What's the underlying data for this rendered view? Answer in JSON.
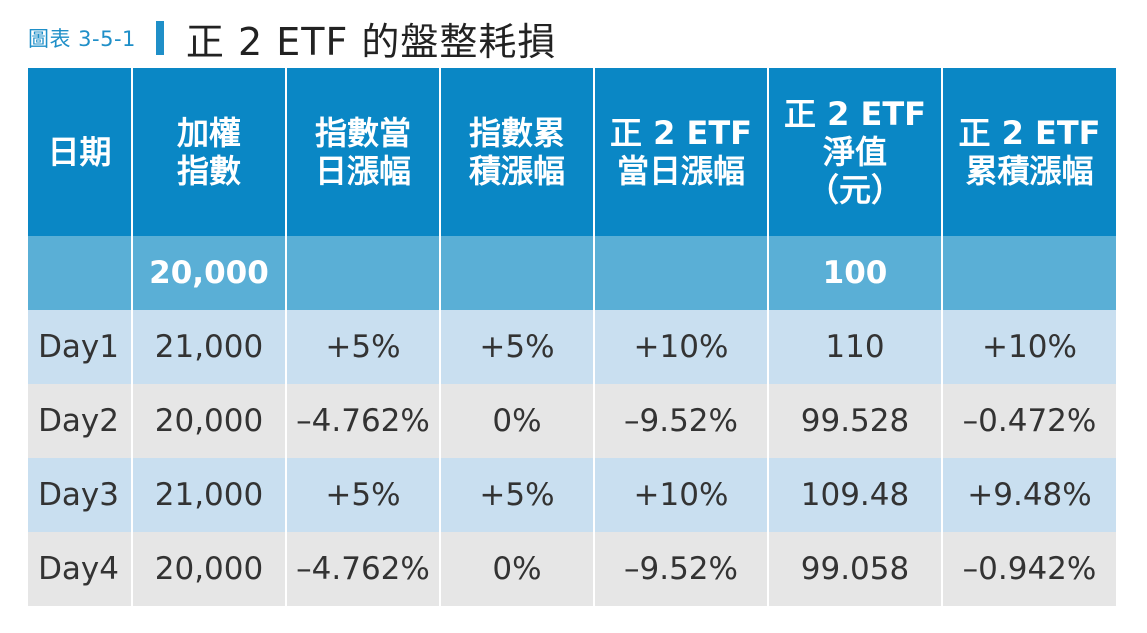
{
  "title": {
    "figure_label": "圖表 3-5-1",
    "text": "正 2 ETF 的盤整耗損"
  },
  "headers": [
    [
      "日期"
    ],
    [
      "加權",
      "指數"
    ],
    [
      "指數當",
      "日漲幅"
    ],
    [
      "指數累",
      "積漲幅"
    ],
    [
      "正 2 ETF",
      "當日漲幅"
    ],
    [
      "正 2 ETF",
      "淨值",
      "（元）"
    ],
    [
      "正 2 ETF",
      "累積漲幅"
    ]
  ],
  "base_row": [
    "",
    "20,000",
    "",
    "",
    "",
    "100",
    ""
  ],
  "rows": [
    [
      "Day1",
      "21,000",
      "+5%",
      "+5%",
      "+10%",
      "110",
      "+10%"
    ],
    [
      "Day2",
      "20,000",
      "–4.762%",
      "0%",
      "–9.52%",
      "99.528",
      "–0.472%"
    ],
    [
      "Day3",
      "21,000",
      "+5%",
      "+5%",
      "+10%",
      "109.48",
      "+9.48%"
    ],
    [
      "Day4",
      "20,000",
      "–4.762%",
      "0%",
      "–9.52%",
      "99.058",
      "–0.942%"
    ]
  ],
  "colors": {
    "header_bg": "#0a87c5",
    "base_row_bg": "#5aafd6",
    "row_blue": "#c9dff0",
    "row_gray": "#e6e6e6",
    "accent": "#1f8fc8"
  }
}
